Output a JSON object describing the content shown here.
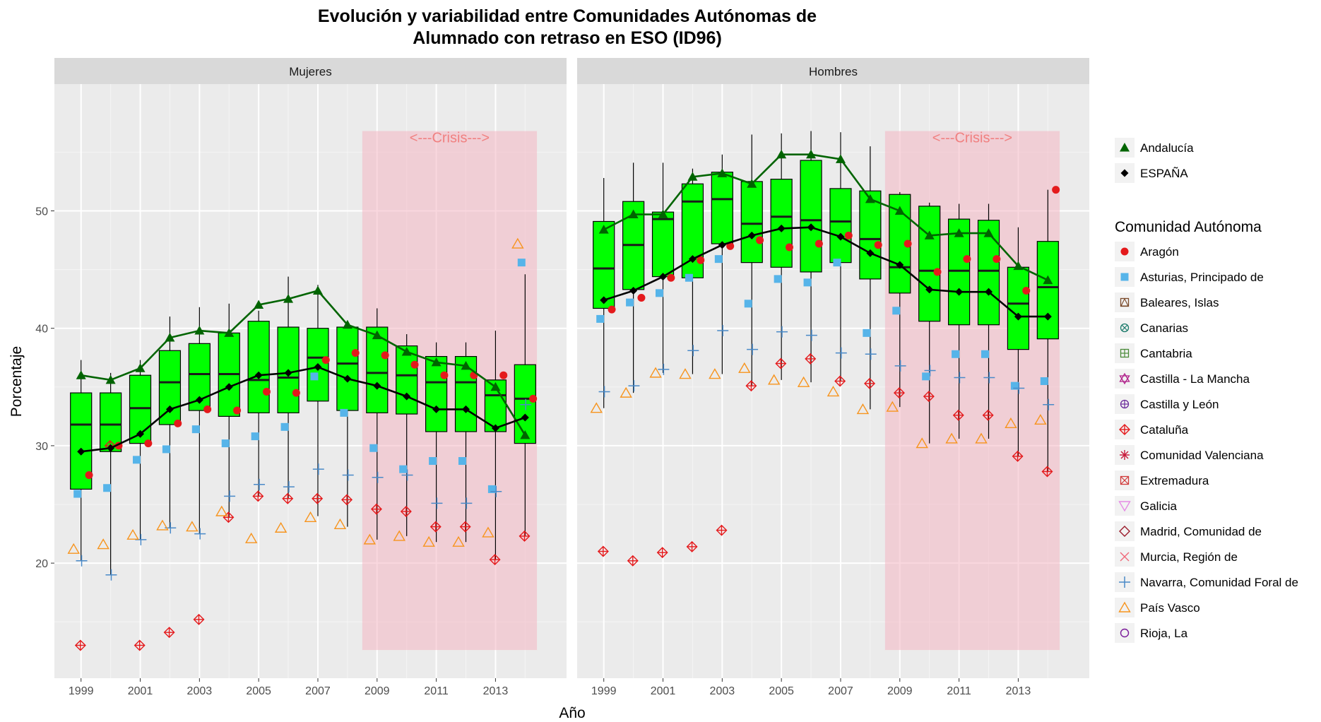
{
  "chart_data": {
    "type": "box",
    "title_line1": "Evolución y variabilidad entre Comunidades Autónomas de",
    "title_line2": "Alumnado con retraso en ESO (ID96)",
    "xlabel": "Año",
    "ylabel": "Porcentaje",
    "ylim": [
      10.2,
      60.8
    ],
    "yticks": [
      20,
      30,
      40,
      50
    ],
    "xticks": [
      1999,
      2001,
      2003,
      2005,
      2007,
      2009,
      2011,
      2013
    ],
    "crisis_label": "<---Crisis--->",
    "crisis_range": [
      2008.5,
      2014.4
    ],
    "crisis_y_range": [
      12.6,
      56.8
    ],
    "box_color": "#00ff00",
    "crisis_color": "#f4b6c2",
    "legend_top": [
      {
        "name": "Andalucía",
        "color": "#006400"
      },
      {
        "name": "ESPAÑA",
        "color": "#000000"
      }
    ],
    "legend_title": "Comunidad Autónoma",
    "regions": [
      {
        "name": "Aragón",
        "color": "#e41a1c"
      },
      {
        "name": "Asturias, Principado de",
        "color": "#56b4e9"
      },
      {
        "name": "Baleares, Islas",
        "color": "#7a4a2a"
      },
      {
        "name": "Canarias",
        "color": "#1a7a6a"
      },
      {
        "name": "Cantabria",
        "color": "#4a8a3a"
      },
      {
        "name": "Castilla - La Mancha",
        "color": "#b0208a"
      },
      {
        "name": "Castilla y León",
        "color": "#6a2a9a"
      },
      {
        "name": "Cataluña",
        "color": "#e41a1c"
      },
      {
        "name": "Comunidad Valenciana",
        "color": "#c81a3a"
      },
      {
        "name": "Extremadura",
        "color": "#d03a3a"
      },
      {
        "name": "Galicia",
        "color": "#e58be5"
      },
      {
        "name": "Madrid, Comunidad de",
        "color": "#9a1a2a"
      },
      {
        "name": "Murcia, Región de",
        "color": "#f06a7a"
      },
      {
        "name": "Navarra, Comunidad Foral de",
        "color": "#4a8ac8"
      },
      {
        "name": "País Vasco",
        "color": "#f7941d"
      },
      {
        "name": "Rioja, La",
        "color": "#7a1a9a"
      }
    ],
    "panels": [
      {
        "name": "Mujeres",
        "years": [
          1999,
          2000,
          2001,
          2002,
          2003,
          2004,
          2005,
          2006,
          2007,
          2008,
          2009,
          2010,
          2011,
          2012,
          2013,
          2014
        ],
        "box_min": [
          20.2,
          19.0,
          22.0,
          23.0,
          22.5,
          23.9,
          25.7,
          25.5,
          24.0,
          23.1,
          22.0,
          22.3,
          21.8,
          21.8,
          20.3,
          22.3
        ],
        "box_q1": [
          26.3,
          29.5,
          30.2,
          31.8,
          33.0,
          32.5,
          32.8,
          32.8,
          33.8,
          33.0,
          32.8,
          32.7,
          31.2,
          31.2,
          31.2,
          30.2
        ],
        "box_median": [
          31.8,
          31.8,
          33.2,
          35.4,
          36.1,
          36.1,
          35.6,
          35.8,
          37.5,
          37.0,
          36.2,
          36.0,
          35.4,
          35.4,
          34.3,
          34.0
        ],
        "box_q3": [
          34.5,
          34.5,
          36.0,
          38.1,
          38.7,
          39.6,
          40.6,
          40.1,
          40.0,
          40.1,
          40.1,
          38.5,
          37.6,
          37.6,
          35.6,
          36.9
        ],
        "box_max": [
          37.3,
          36.2,
          37.3,
          41.0,
          41.8,
          42.1,
          41.5,
          44.4,
          43.7,
          40.5,
          41.7,
          39.5,
          38.8,
          38.8,
          39.8,
          44.6
        ],
        "andalucia": [
          36.0,
          35.6,
          36.6,
          39.2,
          39.8,
          39.6,
          42.0,
          42.5,
          43.2,
          40.3,
          39.4,
          38.0,
          37.1,
          36.8,
          35.0,
          30.9
        ],
        "espana": [
          29.5,
          29.8,
          31.0,
          33.1,
          33.9,
          35.0,
          36.0,
          36.2,
          36.7,
          35.7,
          35.1,
          34.2,
          33.1,
          33.1,
          31.5,
          32.4
        ],
        "aragon": [
          27.5,
          30.0,
          30.2,
          31.9,
          33.1,
          33.0,
          34.6,
          34.5,
          37.3,
          37.9,
          37.7,
          36.9,
          36.0,
          36.0,
          36.0,
          34.0
        ],
        "asturias": [
          25.9,
          26.4,
          28.8,
          29.7,
          31.4,
          30.2,
          30.8,
          31.6,
          35.9,
          32.8,
          29.8,
          28.0,
          28.7,
          28.7,
          26.3,
          45.6
        ],
        "cataluna": [
          13.0,
          30.0,
          13.0,
          14.1,
          15.2,
          23.9,
          25.7,
          25.5,
          25.5,
          25.4,
          24.6,
          24.4,
          23.1,
          23.1,
          20.3,
          22.3
        ],
        "navarra": [
          20.2,
          19.0,
          22.0,
          23.0,
          22.5,
          25.7,
          26.7,
          26.5,
          28.0,
          27.5,
          27.3,
          27.5,
          25.1,
          25.1,
          26.1,
          33.5
        ],
        "pais_vasco": [
          21.2,
          21.6,
          22.4,
          23.2,
          23.1,
          24.4,
          22.1,
          23.0,
          23.9,
          23.3,
          22.0,
          22.3,
          21.8,
          21.8,
          22.6,
          47.2
        ]
      },
      {
        "name": "Hombres",
        "years": [
          1999,
          2000,
          2001,
          2002,
          2003,
          2004,
          2005,
          2006,
          2007,
          2008,
          2009,
          2010,
          2011,
          2012,
          2013,
          2014
        ],
        "box_min": [
          33.2,
          34.5,
          36.2,
          36.1,
          36.1,
          35.1,
          35.6,
          35.4,
          35.5,
          33.1,
          33.3,
          30.2,
          30.6,
          30.6,
          29.1,
          27.8
        ],
        "box_q1": [
          41.7,
          43.3,
          44.4,
          44.3,
          47.2,
          45.6,
          45.2,
          44.8,
          45.6,
          44.2,
          43.0,
          40.6,
          40.3,
          40.3,
          38.2,
          39.1
        ],
        "box_median": [
          45.1,
          47.1,
          49.3,
          50.8,
          51.0,
          48.9,
          49.5,
          49.2,
          49.1,
          47.6,
          45.2,
          44.9,
          44.9,
          44.9,
          42.1,
          43.5
        ],
        "box_q3": [
          49.1,
          50.8,
          49.9,
          52.3,
          53.3,
          52.5,
          52.7,
          54.3,
          51.9,
          51.7,
          51.4,
          50.4,
          49.3,
          49.2,
          45.2,
          47.4
        ],
        "box_max": [
          52.8,
          54.1,
          54.1,
          53.6,
          54.8,
          56.5,
          56.6,
          56.8,
          56.7,
          55.5,
          51.6,
          50.7,
          50.6,
          50.6,
          48.6,
          51.8
        ],
        "andalucia": [
          48.4,
          49.7,
          49.7,
          52.9,
          53.2,
          52.3,
          54.8,
          54.8,
          54.4,
          51.0,
          50.0,
          47.9,
          48.1,
          48.1,
          45.3,
          44.1
        ],
        "espana": [
          42.4,
          43.2,
          44.4,
          45.9,
          47.1,
          47.9,
          48.5,
          48.6,
          47.8,
          46.4,
          45.4,
          43.3,
          43.1,
          43.1,
          41.0,
          41.0
        ],
        "aragon": [
          41.6,
          42.6,
          44.3,
          45.8,
          47.0,
          47.5,
          46.9,
          47.2,
          47.9,
          47.1,
          47.2,
          44.8,
          45.9,
          45.9,
          43.2,
          51.8
        ],
        "asturias": [
          40.8,
          42.2,
          43.0,
          44.3,
          45.9,
          42.1,
          44.2,
          43.9,
          45.6,
          39.6,
          41.5,
          35.9,
          37.8,
          37.8,
          35.1,
          35.5
        ],
        "cataluna": [
          21.0,
          20.2,
          20.9,
          21.4,
          22.8,
          35.1,
          37.0,
          37.4,
          35.5,
          35.3,
          34.5,
          34.2,
          32.6,
          32.6,
          29.1,
          27.8
        ],
        "navarra": [
          34.6,
          35.1,
          36.5,
          38.1,
          39.8,
          38.2,
          39.7,
          39.4,
          37.9,
          37.8,
          36.8,
          36.4,
          35.8,
          35.8,
          34.9,
          33.5
        ],
        "pais_vasco": [
          33.2,
          34.5,
          36.2,
          36.1,
          36.1,
          36.6,
          35.6,
          35.4,
          34.6,
          33.1,
          33.3,
          30.2,
          30.6,
          30.6,
          31.9,
          32.2
        ]
      }
    ]
  }
}
